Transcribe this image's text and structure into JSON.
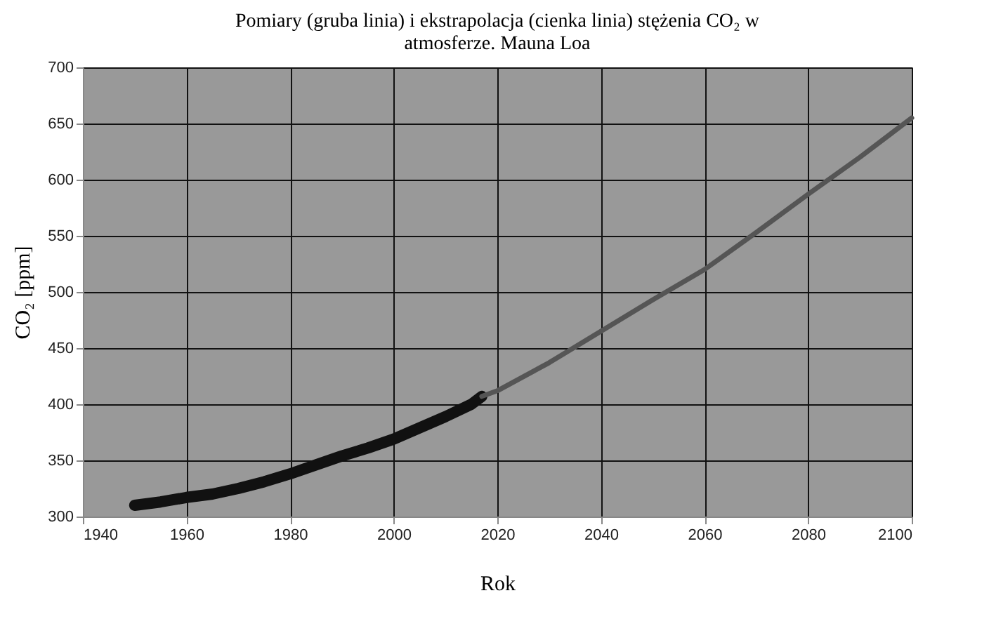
{
  "chart_data": {
    "type": "line",
    "title": "Pomiary (gruba linia) i ekstrapolacja (cienka linia) stężenia CO₂ w atmosferze. Mauna Loa",
    "xlabel": "Rok",
    "ylabel": "CO₂ [ppm]",
    "series": [
      {
        "color": "#111111",
        "x": [
          1950,
          1955,
          1960,
          1965,
          1970,
          1975,
          1980,
          1985,
          1990,
          1995,
          2000,
          2005,
          2010,
          2015,
          2017
        ],
        "values": [
          310,
          313,
          317,
          320,
          325,
          331,
          338,
          346,
          354,
          361,
          369,
          379,
          389,
          400,
          407
        ]
      },
      {
        "color": "#555555",
        "x": [
          2017,
          2020,
          2030,
          2040,
          2050,
          2060,
          2070,
          2080,
          2090,
          2100
        ],
        "values": [
          407,
          412,
          437,
          465,
          493,
          520,
          553,
          587,
          620,
          655
        ]
      }
    ],
    "xlim": [
      1940,
      2100
    ],
    "xticks": [
      1940,
      1960,
      1980,
      2000,
      2020,
      2040,
      2060,
      2080,
      2100
    ],
    "ylim": [
      300,
      700
    ],
    "yticks": [
      300,
      350,
      400,
      450,
      500,
      550,
      600,
      650,
      700
    ],
    "grid": true,
    "marker": "none",
    "line_style": "solid"
  }
}
